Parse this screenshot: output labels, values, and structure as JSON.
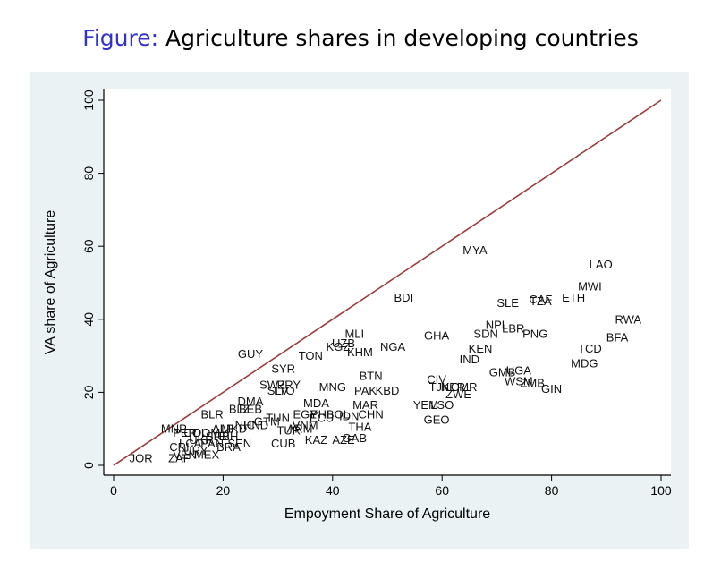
{
  "figure": {
    "prefix": "Figure:",
    "caption": "Agriculture shares in developing countries"
  },
  "colors": {
    "panel_bg": "#eaf2f3",
    "plot_bg": "#ffffff",
    "line": "#9c3a3a",
    "axis": "#000000"
  },
  "chart_data": {
    "type": "scatter",
    "title": "",
    "xlabel": "Empoyment Share of Agriculture",
    "ylabel": "VA share of Agriculture",
    "xlim": [
      0,
      100
    ],
    "ylim": [
      0,
      100
    ],
    "xticks": [
      0,
      20,
      40,
      60,
      80,
      100
    ],
    "yticks": [
      0,
      20,
      40,
      60,
      80,
      100
    ],
    "grid": false,
    "legend": "none",
    "reference_line": {
      "from": [
        0,
        0
      ],
      "to": [
        100,
        100
      ]
    },
    "points": [
      {
        "label": "MYA",
        "x": 66,
        "y": 59
      },
      {
        "label": "LAO",
        "x": 89,
        "y": 55
      },
      {
        "label": "MWI",
        "x": 87,
        "y": 49
      },
      {
        "label": "ETH",
        "x": 84,
        "y": 46
      },
      {
        "label": "CAF",
        "x": 78,
        "y": 45.5
      },
      {
        "label": "TZA",
        "x": 78,
        "y": 45
      },
      {
        "label": "SLE",
        "x": 72,
        "y": 44.5
      },
      {
        "label": "BDI",
        "x": 53,
        "y": 46
      },
      {
        "label": "RWA",
        "x": 94,
        "y": 40
      },
      {
        "label": "BFA",
        "x": 92,
        "y": 35
      },
      {
        "label": "TCD",
        "x": 87,
        "y": 32
      },
      {
        "label": "MDG",
        "x": 86,
        "y": 28
      },
      {
        "label": "NPL",
        "x": 70,
        "y": 38.5
      },
      {
        "label": "LBR",
        "x": 73,
        "y": 37.5
      },
      {
        "label": "PNG",
        "x": 77,
        "y": 36
      },
      {
        "label": "SDN",
        "x": 68,
        "y": 36
      },
      {
        "label": "GHA",
        "x": 59,
        "y": 35.5
      },
      {
        "label": "KEN",
        "x": 67,
        "y": 32
      },
      {
        "label": "IND",
        "x": 65,
        "y": 29
      },
      {
        "label": "NGA",
        "x": 51,
        "y": 32.5
      },
      {
        "label": "MLI",
        "x": 44,
        "y": 36
      },
      {
        "label": "UZB",
        "x": 42,
        "y": 33.5
      },
      {
        "label": "KGZ",
        "x": 41,
        "y": 32.5
      },
      {
        "label": "KHM",
        "x": 45,
        "y": 31
      },
      {
        "label": "TON",
        "x": 36,
        "y": 30
      },
      {
        "label": "GUY",
        "x": 25,
        "y": 30.5
      },
      {
        "label": "SYR",
        "x": 31,
        "y": 26.5
      },
      {
        "label": "BTN",
        "x": 47,
        "y": 24.5
      },
      {
        "label": "MNG",
        "x": 40,
        "y": 21.5
      },
      {
        "label": "PAK",
        "x": 46,
        "y": 20.5
      },
      {
        "label": "KBD",
        "x": 50,
        "y": 20.5
      },
      {
        "label": "CIV",
        "x": 59,
        "y": 23.5
      },
      {
        "label": "TJK",
        "x": 59.5,
        "y": 21.5
      },
      {
        "label": "NER",
        "x": 62,
        "y": 21.5
      },
      {
        "label": "CMR",
        "x": 64,
        "y": 21.5
      },
      {
        "label": "GMB",
        "x": 71,
        "y": 25.5
      },
      {
        "label": "UGA",
        "x": 74,
        "y": 26
      },
      {
        "label": "WSM",
        "x": 74,
        "y": 23
      },
      {
        "label": "ZMB",
        "x": 76.5,
        "y": 22.5
      },
      {
        "label": "GIN",
        "x": 80,
        "y": 21
      },
      {
        "label": "ZWE",
        "x": 63,
        "y": 19.5
      },
      {
        "label": "YEM",
        "x": 57,
        "y": 16.5
      },
      {
        "label": "LSO",
        "x": 60,
        "y": 16.5
      },
      {
        "label": "GEO",
        "x": 59,
        "y": 12.5
      },
      {
        "label": "SWZ",
        "x": 29,
        "y": 22
      },
      {
        "label": "PRY",
        "x": 32,
        "y": 22
      },
      {
        "label": "SLV",
        "x": 30,
        "y": 20.5
      },
      {
        "label": "TTO",
        "x": 31,
        "y": 20.5
      },
      {
        "label": "DMA",
        "x": 25,
        "y": 17.5
      },
      {
        "label": "BLZ",
        "x": 23,
        "y": 15.5
      },
      {
        "label": "BEB",
        "x": 25,
        "y": 15.5
      },
      {
        "label": "BLR",
        "x": 18,
        "y": 14
      },
      {
        "label": "MDA",
        "x": 37,
        "y": 17
      },
      {
        "label": "MAR",
        "x": 46,
        "y": 16.5
      },
      {
        "label": "CHN",
        "x": 47,
        "y": 14
      },
      {
        "label": "EGY",
        "x": 35,
        "y": 14
      },
      {
        "label": "PHL",
        "x": 38,
        "y": 14
      },
      {
        "label": "BOL",
        "x": 41,
        "y": 14
      },
      {
        "label": "IDN",
        "x": 43,
        "y": 13.5
      },
      {
        "label": "ECU",
        "x": 38,
        "y": 13
      },
      {
        "label": "THA",
        "x": 45,
        "y": 10.5
      },
      {
        "label": "GAB",
        "x": 44,
        "y": 7.5
      },
      {
        "label": "AZE",
        "x": 42,
        "y": 7
      },
      {
        "label": "KAZ",
        "x": 37,
        "y": 7
      },
      {
        "label": "CUB",
        "x": 31,
        "y": 6
      },
      {
        "label": "TUN",
        "x": 30,
        "y": 13
      },
      {
        "label": "TUR",
        "x": 32,
        "y": 9.5
      },
      {
        "label": "ARM",
        "x": 34,
        "y": 10
      },
      {
        "label": "VNM",
        "x": 35,
        "y": 11
      },
      {
        "label": "GTM",
        "x": 28,
        "y": 12
      },
      {
        "label": "HND",
        "x": 26,
        "y": 11
      },
      {
        "label": "NIC",
        "x": 24,
        "y": 11
      },
      {
        "label": "MNP",
        "x": 11,
        "y": 10
      },
      {
        "label": "PER",
        "x": 13,
        "y": 9
      },
      {
        "label": "COL",
        "x": 15,
        "y": 9
      },
      {
        "label": "DOM",
        "x": 17,
        "y": 9
      },
      {
        "label": "ALB",
        "x": 20,
        "y": 10
      },
      {
        "label": "MKD",
        "x": 22,
        "y": 10
      },
      {
        "label": "SRB",
        "x": 19,
        "y": 8
      },
      {
        "label": "BIH",
        "x": 21,
        "y": 8
      },
      {
        "label": "UKR",
        "x": 16,
        "y": 7
      },
      {
        "label": "LCA",
        "x": 14,
        "y": 6
      },
      {
        "label": "PAN",
        "x": 18,
        "y": 6
      },
      {
        "label": "SEN",
        "x": 23,
        "y": 6
      },
      {
        "label": "BRA",
        "x": 21,
        "y": 5
      },
      {
        "label": "CRI",
        "x": 12,
        "y": 5
      },
      {
        "label": "URY",
        "x": 15,
        "y": 4
      },
      {
        "label": "MEX",
        "x": 17,
        "y": 3
      },
      {
        "label": "VEN",
        "x": 13,
        "y": 3
      },
      {
        "label": "ZAF",
        "x": 12,
        "y": 2
      },
      {
        "label": "JOR",
        "x": 5,
        "y": 2
      }
    ]
  }
}
